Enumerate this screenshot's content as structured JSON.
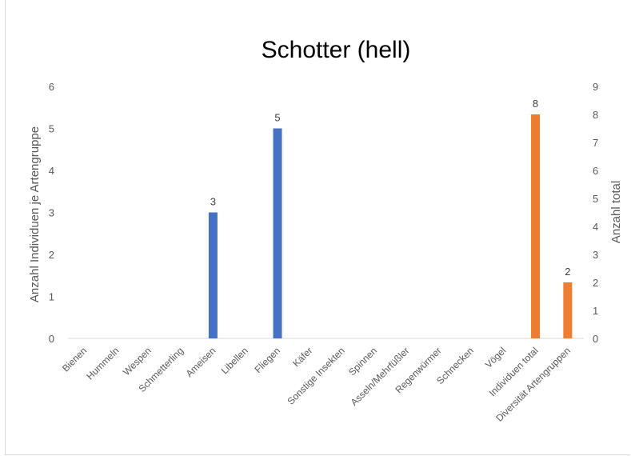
{
  "chart_data": {
    "type": "bar",
    "title": "Schotter (hell)",
    "ylabel": "Anzahl Individuen je Artengruppe",
    "y2label": "Anzahl total",
    "ylim": [
      0,
      6
    ],
    "y2lim": [
      0,
      9
    ],
    "yticks": [
      "0",
      "1",
      "2",
      "3",
      "4",
      "5",
      "6"
    ],
    "y2ticks": [
      "0",
      "1",
      "2",
      "3",
      "4",
      "5",
      "6",
      "7",
      "8",
      "9"
    ],
    "grid": false,
    "categories": [
      "Bienen",
      "Hummeln",
      "Wespen",
      "Schmetterling",
      "Ameisen",
      "Libellen",
      "Fliegen",
      "Käfer",
      "Sonstige Insekten",
      "Spinnen",
      "Asseln/Mehrfüßler",
      "Regenwürmer",
      "Schnecken",
      "Vögel",
      "Individuen total",
      "Diversität Artengruppen"
    ],
    "series": [
      {
        "axis": "primary",
        "color": "#4472c4",
        "values": [
          0,
          0,
          0,
          0,
          3,
          0,
          5,
          0,
          0,
          0,
          0,
          0,
          0,
          0,
          null,
          null
        ],
        "labels": [
          null,
          null,
          null,
          null,
          "3",
          null,
          "5",
          null,
          null,
          null,
          null,
          null,
          null,
          null,
          null,
          null
        ]
      },
      {
        "axis": "secondary",
        "color": "#ed7d31",
        "values": [
          null,
          null,
          null,
          null,
          null,
          null,
          null,
          null,
          null,
          null,
          null,
          null,
          null,
          null,
          8,
          2
        ],
        "labels": [
          null,
          null,
          null,
          null,
          null,
          null,
          null,
          null,
          null,
          null,
          null,
          null,
          null,
          null,
          "8",
          "2"
        ]
      }
    ]
  }
}
